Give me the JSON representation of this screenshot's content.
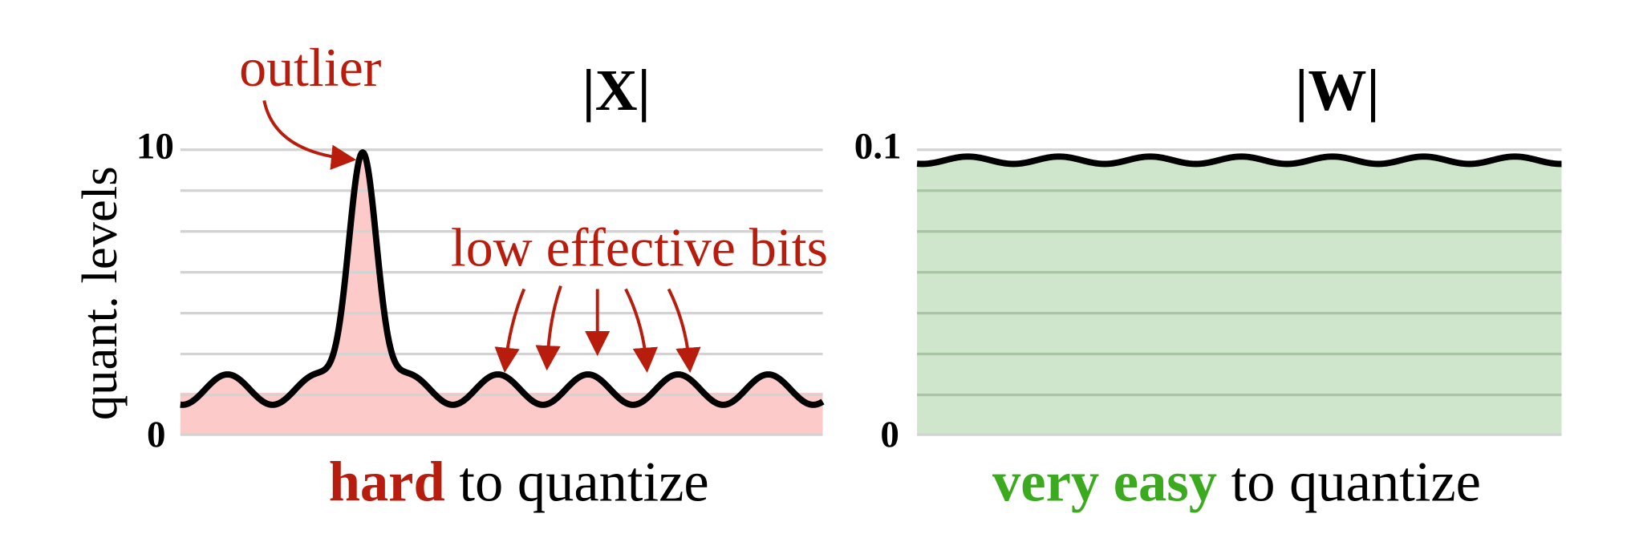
{
  "panels": [
    {
      "title": "|X|",
      "y_label": "quant. levels",
      "y_top": "10",
      "y_bottom": "0",
      "caption": {
        "emphasis": "hard",
        "rest": "to quantize"
      },
      "annotations": [
        "outlier",
        "low effective bits"
      ]
    },
    {
      "title": "|W|",
      "y_top": "0.1",
      "y_bottom": "0",
      "caption": {
        "emphasis": "very easy",
        "rest": "to quantize"
      }
    }
  ]
}
